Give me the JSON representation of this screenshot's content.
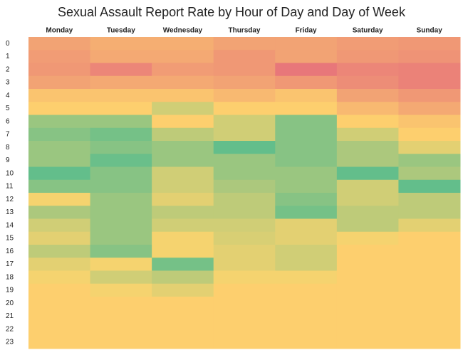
{
  "chart_data": {
    "type": "heatmap",
    "title": "Sexual Assault Report Rate by Hour of Day and Day of Week",
    "x_categories": [
      "Monday",
      "Tuesday",
      "Wednesday",
      "Thursday",
      "Friday",
      "Saturday",
      "Sunday"
    ],
    "y_categories": [
      "0",
      "1",
      "2",
      "3",
      "4",
      "5",
      "6",
      "7",
      "8",
      "9",
      "10",
      "11",
      "12",
      "13",
      "14",
      "15",
      "16",
      "17",
      "18",
      "19",
      "20",
      "21",
      "22",
      "23"
    ],
    "colors": [
      "#63be8b",
      "#fed46d",
      "#e8777a"
    ],
    "values": [
      [
        75,
        70,
        70,
        75,
        75,
        78,
        80
      ],
      [
        78,
        72,
        72,
        80,
        75,
        80,
        82
      ],
      [
        80,
        88,
        78,
        80,
        95,
        88,
        90
      ],
      [
        75,
        72,
        72,
        75,
        80,
        85,
        90
      ],
      [
        60,
        60,
        60,
        65,
        60,
        75,
        80
      ],
      [
        55,
        55,
        40,
        55,
        55,
        65,
        72
      ],
      [
        25,
        25,
        55,
        40,
        20,
        55,
        60
      ],
      [
        20,
        15,
        35,
        40,
        20,
        40,
        55
      ],
      [
        25,
        20,
        25,
        10,
        20,
        30,
        45
      ],
      [
        25,
        12,
        25,
        25,
        20,
        30,
        25
      ],
      [
        10,
        20,
        40,
        25,
        25,
        10,
        30
      ],
      [
        20,
        20,
        40,
        30,
        25,
        40,
        10
      ],
      [
        50,
        25,
        45,
        35,
        20,
        40,
        35
      ],
      [
        30,
        25,
        35,
        35,
        15,
        35,
        35
      ],
      [
        40,
        25,
        40,
        40,
        45,
        35,
        45
      ],
      [
        45,
        25,
        50,
        42,
        45,
        50,
        55
      ],
      [
        35,
        20,
        50,
        45,
        40,
        55,
        55
      ],
      [
        45,
        50,
        15,
        45,
        40,
        55,
        55
      ],
      [
        50,
        40,
        35,
        50,
        50,
        55,
        55
      ],
      [
        55,
        50,
        45,
        55,
        55,
        55,
        55
      ],
      [
        55,
        55,
        55,
        55,
        55,
        55,
        55
      ],
      [
        55,
        55,
        55,
        55,
        55,
        55,
        55
      ],
      [
        55,
        55,
        55,
        55,
        55,
        55,
        55
      ],
      [
        55,
        55,
        55,
        55,
        55,
        55,
        55
      ]
    ]
  }
}
